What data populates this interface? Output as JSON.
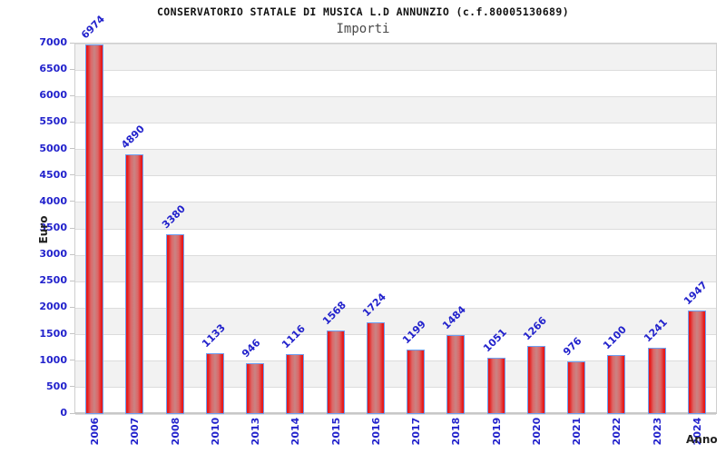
{
  "chart_data": {
    "type": "bar",
    "title": "CONSERVATORIO STATALE DI MUSICA L.D ANNUNZIO (c.f.80005130689)",
    "subtitle": "Importi",
    "xlabel": "Anno",
    "ylabel": "Euro",
    "categories": [
      "2006",
      "2007",
      "2008",
      "2010",
      "2013",
      "2014",
      "2015",
      "2016",
      "2017",
      "2018",
      "2019",
      "2020",
      "2021",
      "2022",
      "2023",
      "2024"
    ],
    "values": [
      6974,
      4890,
      3380,
      1133,
      946,
      1116,
      1568,
      1724,
      1199,
      1484,
      1051,
      1266,
      976,
      1100,
      1241,
      1947
    ],
    "ylim": [
      0,
      7000
    ],
    "yticks": [
      0,
      500,
      1000,
      1500,
      2000,
      2500,
      3000,
      3500,
      4000,
      4500,
      5000,
      5500,
      6000,
      6500,
      7000
    ],
    "grid": true,
    "legend_position": "none",
    "colors": {
      "bar_fill_edge": "#e71a1a",
      "bar_fill_center": "#c98484",
      "bar_border": "#6e9ff2",
      "tick_label": "#2222cc",
      "value_label": "#2222cc",
      "gridline": "#dcdcdc",
      "band_dark": "#f2f2f2",
      "band_light": "#ffffff",
      "title": "#111111",
      "subtitle": "#4a4a4a"
    }
  }
}
